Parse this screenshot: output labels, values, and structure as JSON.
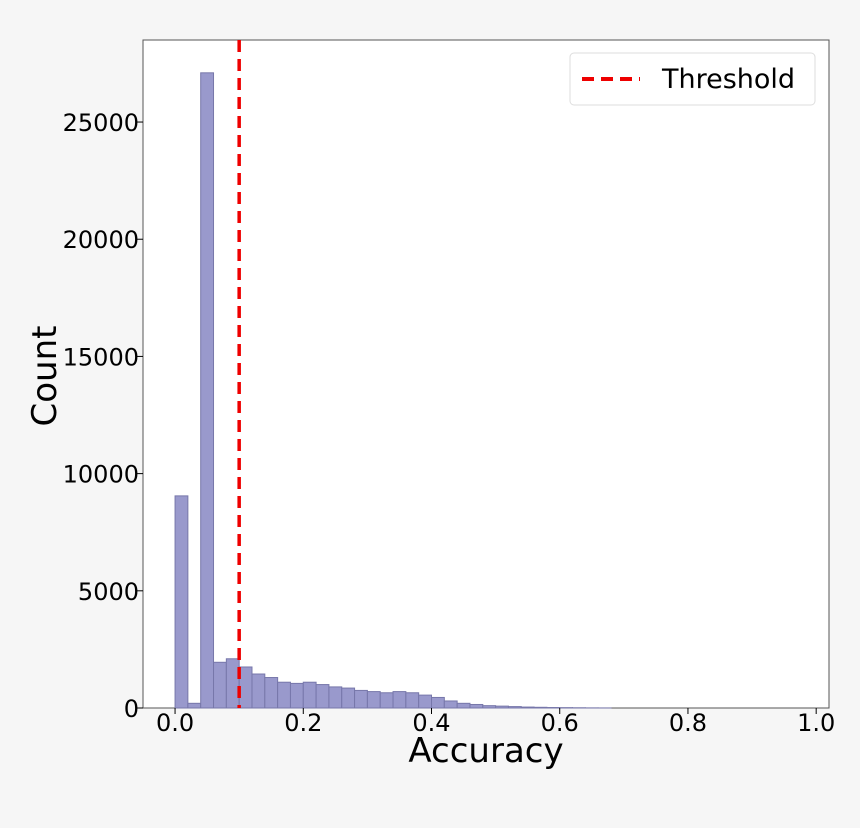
{
  "chart_data": {
    "type": "bar",
    "title": "",
    "xlabel": "Accuracy",
    "ylabel": "Count",
    "xlim": [
      -0.05,
      1.02
    ],
    "ylim": [
      0,
      28500
    ],
    "xticks": [
      0.0,
      0.2,
      0.4,
      0.6,
      0.8,
      1.0
    ],
    "xtick_labels": [
      "0.0",
      "0.2",
      "0.4",
      "0.6",
      "0.8",
      "1.0"
    ],
    "yticks": [
      0,
      5000,
      10000,
      15000,
      20000,
      25000
    ],
    "ytick_labels": [
      "0",
      "5000",
      "10000",
      "15000",
      "20000",
      "25000"
    ],
    "bin_width": 0.02,
    "bin_starts": [
      0.0,
      0.02,
      0.04,
      0.06,
      0.08,
      0.1,
      0.12,
      0.14,
      0.16,
      0.18,
      0.2,
      0.22,
      0.24,
      0.26,
      0.28,
      0.3,
      0.32,
      0.34,
      0.36,
      0.38,
      0.4,
      0.42,
      0.44,
      0.46,
      0.48,
      0.5,
      0.52,
      0.54,
      0.56,
      0.58,
      0.6,
      0.62,
      0.64,
      0.66
    ],
    "counts": [
      9050,
      200,
      27100,
      1950,
      2100,
      1750,
      1450,
      1300,
      1100,
      1050,
      1100,
      1000,
      900,
      850,
      750,
      700,
      650,
      700,
      650,
      550,
      450,
      300,
      200,
      150,
      100,
      80,
      60,
      40,
      30,
      20,
      15,
      10,
      5,
      3
    ],
    "bar_color": "#9999cc",
    "bar_edge_color": "#7777aa",
    "threshold": {
      "x": 0.1,
      "label": "Threshold",
      "color": "#ee0000",
      "style": "dashed"
    },
    "legend": {
      "position": "top-right",
      "entries": [
        "Threshold"
      ]
    },
    "grid": false
  }
}
